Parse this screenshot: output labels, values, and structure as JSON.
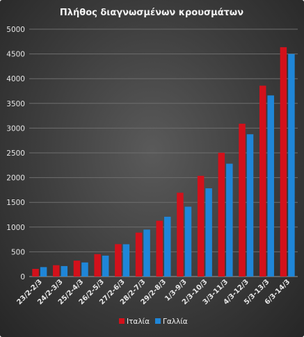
{
  "chart_data": {
    "type": "bar",
    "title": "Πλήθος διαγνωσμένων κρουσμάτων",
    "xlabel": "",
    "ylabel": "",
    "ylim": [
      0,
      5000
    ],
    "yticks": [
      0,
      500,
      1000,
      1500,
      2000,
      2500,
      3000,
      3500,
      4000,
      4500,
      5000
    ],
    "grid": true,
    "legend_position": "bottom",
    "categories": [
      "23/2-2/3",
      "24/2-3/3",
      "25/2-4/3",
      "26/2-5/3",
      "27/2-6/3",
      "28/2-7/3",
      "29/2-8/3",
      "1/3-9/3",
      "2/3-10/3",
      "3/3-11/3",
      "4/3-12/3",
      "5/3-13/3",
      "6/3-14/3"
    ],
    "series": [
      {
        "name": "Ιταλία",
        "color": "#d3111b",
        "values": [
          155,
          229,
          322,
          453,
          655,
          888,
          1128,
          1694,
          2036,
          2502,
          3089,
          3858,
          4636
        ]
      },
      {
        "name": "Γαλλία",
        "color": "#1f86d8",
        "values": [
          191,
          212,
          285,
          423,
          653,
          949,
          1209,
          1412,
          1784,
          2281,
          2876,
          3661,
          4499
        ]
      }
    ]
  }
}
